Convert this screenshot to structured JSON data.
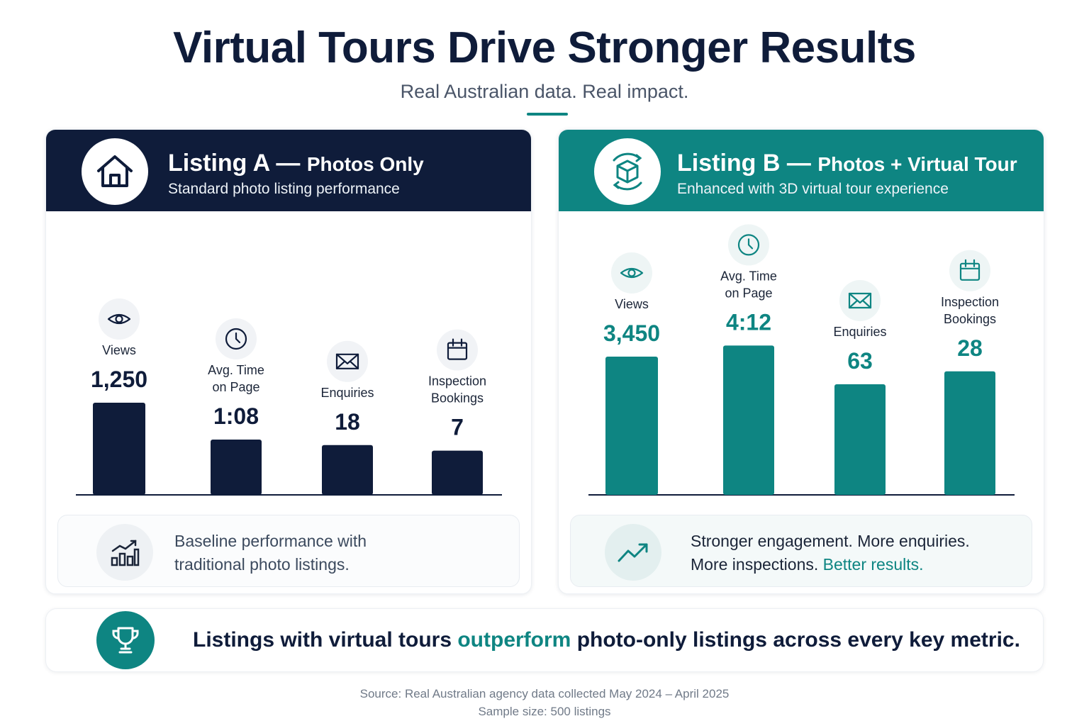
{
  "title": "Virtual Tours Drive Stronger Results",
  "subtitle": "Real Australian data. Real impact.",
  "listing_a": {
    "title_main": "Listing A — ",
    "title_small": "Photos Only",
    "subtitle": "Standard photo listing performance",
    "icon": "house-icon",
    "note_line1": "Baseline performance with",
    "note_line2": "traditional photo listings.",
    "note_icon": "bar-growth-icon"
  },
  "listing_b": {
    "title_main": "Listing B — ",
    "title_small": "Photos + Virtual Tour",
    "subtitle": "Enhanced with 3D virtual tour experience",
    "icon": "3d-cube-icon",
    "note_line1": "Stronger engagement. More enquiries.",
    "note_line2": "More inspections. ",
    "note_accent": "Better results.",
    "note_icon": "trend-up-icon"
  },
  "banner": {
    "text_before": "Listings with virtual tours ",
    "text_accent": "outperform",
    "text_after": " photo-only listings across every key metric.",
    "icon": "trophy-icon"
  },
  "source_line1": "Source: Real Australian agency data collected May 2024 – April 2025",
  "source_line2": "Sample size: 500 listings",
  "colors": {
    "navy": "#0f1c3a",
    "teal": "#0e8582"
  },
  "chart_data": [
    {
      "type": "bar",
      "categories": [
        "Views",
        "Avg. Time on Page",
        "Enquiries",
        "Inspection Bookings"
      ],
      "category_lines": [
        [
          "Views"
        ],
        [
          "Avg. Time",
          "on Page"
        ],
        [
          "Enquiries"
        ],
        [
          "Inspection",
          "Bookings"
        ]
      ],
      "category_icons": [
        "eye-icon",
        "clock-icon",
        "mail-icon",
        "calendar-icon"
      ],
      "values": [
        1250,
        68,
        18,
        7
      ],
      "value_labels": [
        "1,250",
        "1:08",
        "18",
        "7"
      ],
      "bar_fill": [
        0.5,
        0.3,
        0.27,
        0.24
      ],
      "grid": false,
      "color": "#0f1c3a"
    },
    {
      "type": "bar",
      "categories": [
        "Views",
        "Avg. Time on Page",
        "Enquiries",
        "Inspection Bookings"
      ],
      "category_lines": [
        [
          "Views"
        ],
        [
          "Avg. Time",
          "on Page"
        ],
        [
          "Enquiries"
        ],
        [
          "Inspection",
          "Bookings"
        ]
      ],
      "category_icons": [
        "eye-icon",
        "clock-icon",
        "mail-icon",
        "calendar-icon"
      ],
      "values": [
        3450,
        252,
        63,
        28
      ],
      "value_labels": [
        "3,450",
        "4:12",
        "63",
        "28"
      ],
      "bar_fill": [
        0.75,
        0.81,
        0.6,
        0.67
      ],
      "grid": false,
      "color": "#0e8582"
    }
  ]
}
